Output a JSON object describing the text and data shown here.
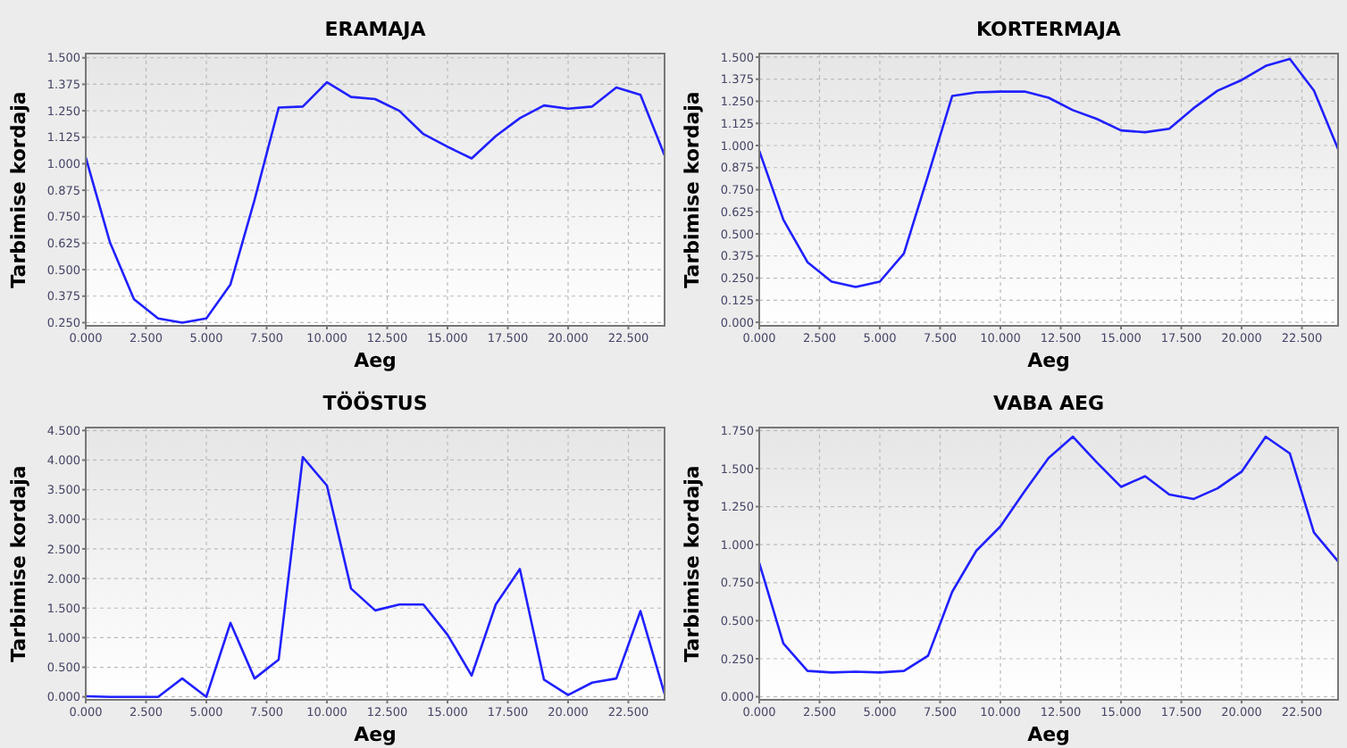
{
  "chart_data": [
    {
      "type": "line",
      "title": "ERAMAJA",
      "xlabel": "Aeg",
      "ylabel": "Tarbimise kordaja",
      "grid": true,
      "xlim": [
        0,
        24
      ],
      "ylim": [
        0.235,
        1.52
      ],
      "xticks": [
        {
          "value": 0,
          "label": "0.000"
        },
        {
          "value": 2.5,
          "label": "2.500"
        },
        {
          "value": 5,
          "label": "5.000"
        },
        {
          "value": 7.5,
          "label": "7.500"
        },
        {
          "value": 10,
          "label": "10.000"
        },
        {
          "value": 12.5,
          "label": "12.500"
        },
        {
          "value": 15,
          "label": "15.000"
        },
        {
          "value": 17.5,
          "label": "17.500"
        },
        {
          "value": 20,
          "label": "20.000"
        },
        {
          "value": 22.5,
          "label": "22.500"
        }
      ],
      "yticks": [
        {
          "value": 0.25,
          "label": "0.250"
        },
        {
          "value": 0.375,
          "label": "0.375"
        },
        {
          "value": 0.5,
          "label": "0.500"
        },
        {
          "value": 0.625,
          "label": "0.625"
        },
        {
          "value": 0.75,
          "label": "0.750"
        },
        {
          "value": 0.875,
          "label": "0.875"
        },
        {
          "value": 1,
          "label": "1.000"
        },
        {
          "value": 1.125,
          "label": "1.125"
        },
        {
          "value": 1.25,
          "label": "1.250"
        },
        {
          "value": 1.375,
          "label": "1.375"
        },
        {
          "value": 1.5,
          "label": "1.500"
        }
      ],
      "x": [
        0,
        1,
        2,
        3,
        4,
        5,
        6,
        7,
        8,
        9,
        10,
        11,
        12,
        13,
        14,
        15,
        16,
        17,
        18,
        19,
        20,
        21,
        22,
        23,
        24
      ],
      "series": [
        {
          "color": "#2020ff",
          "values": [
            1.03,
            0.63,
            0.36,
            0.27,
            0.25,
            0.27,
            0.43,
            0.83,
            1.265,
            1.27,
            1.385,
            1.315,
            1.305,
            1.25,
            1.14,
            1.08,
            1.025,
            1.13,
            1.215,
            1.275,
            1.26,
            1.27,
            1.36,
            1.325,
            1.04
          ]
        }
      ]
    },
    {
      "type": "line",
      "title": "KORTERMAJA",
      "xlabel": "Aeg",
      "ylabel": "Tarbimise kordaja",
      "grid": true,
      "xlim": [
        0,
        24
      ],
      "ylim": [
        -0.02,
        1.52
      ],
      "xticks": [
        {
          "value": 0,
          "label": "0.000"
        },
        {
          "value": 2.5,
          "label": "2.500"
        },
        {
          "value": 5,
          "label": "5.000"
        },
        {
          "value": 7.5,
          "label": "7.500"
        },
        {
          "value": 10,
          "label": "10.000"
        },
        {
          "value": 12.5,
          "label": "12.500"
        },
        {
          "value": 15,
          "label": "15.000"
        },
        {
          "value": 17.5,
          "label": "17.500"
        },
        {
          "value": 20,
          "label": "20.000"
        },
        {
          "value": 22.5,
          "label": "22.500"
        }
      ],
      "yticks": [
        {
          "value": 0,
          "label": "0.000"
        },
        {
          "value": 0.125,
          "label": "0.125"
        },
        {
          "value": 0.25,
          "label": "0.250"
        },
        {
          "value": 0.375,
          "label": "0.375"
        },
        {
          "value": 0.5,
          "label": "0.500"
        },
        {
          "value": 0.625,
          "label": "0.625"
        },
        {
          "value": 0.75,
          "label": "0.750"
        },
        {
          "value": 0.875,
          "label": "0.875"
        },
        {
          "value": 1,
          "label": "1.000"
        },
        {
          "value": 1.125,
          "label": "1.125"
        },
        {
          "value": 1.25,
          "label": "1.250"
        },
        {
          "value": 1.375,
          "label": "1.375"
        },
        {
          "value": 1.5,
          "label": "1.500"
        }
      ],
      "x": [
        0,
        1,
        2,
        3,
        4,
        5,
        6,
        7,
        8,
        9,
        10,
        11,
        12,
        13,
        14,
        15,
        16,
        17,
        18,
        19,
        20,
        21,
        22,
        23,
        24
      ],
      "series": [
        {
          "color": "#2020ff",
          "values": [
            0.97,
            0.58,
            0.34,
            0.23,
            0.2,
            0.23,
            0.39,
            0.83,
            1.28,
            1.3,
            1.305,
            1.305,
            1.27,
            1.2,
            1.15,
            1.085,
            1.075,
            1.095,
            1.21,
            1.31,
            1.37,
            1.45,
            1.49,
            1.31,
            0.98
          ]
        }
      ]
    },
    {
      "type": "line",
      "title": "TÖÖSTUS",
      "xlabel": "Aeg",
      "ylabel": "Tarbimise kordaja",
      "grid": true,
      "xlim": [
        0,
        24
      ],
      "ylim": [
        -0.05,
        4.55
      ],
      "xticks": [
        {
          "value": 0,
          "label": "0.000"
        },
        {
          "value": 2.5,
          "label": "2.500"
        },
        {
          "value": 5,
          "label": "5.000"
        },
        {
          "value": 7.5,
          "label": "7.500"
        },
        {
          "value": 10,
          "label": "10.000"
        },
        {
          "value": 12.5,
          "label": "12.500"
        },
        {
          "value": 15,
          "label": "15.000"
        },
        {
          "value": 17.5,
          "label": "17.500"
        },
        {
          "value": 20,
          "label": "20.000"
        },
        {
          "value": 22.5,
          "label": "22.500"
        }
      ],
      "yticks": [
        {
          "value": 0,
          "label": "0.000"
        },
        {
          "value": 0.5,
          "label": "0.500"
        },
        {
          "value": 1,
          "label": "1.000"
        },
        {
          "value": 1.5,
          "label": "1.500"
        },
        {
          "value": 2,
          "label": "2.000"
        },
        {
          "value": 2.5,
          "label": "2.500"
        },
        {
          "value": 3,
          "label": "3.000"
        },
        {
          "value": 3.5,
          "label": "3.500"
        },
        {
          "value": 4,
          "label": "4.000"
        },
        {
          "value": 4.5,
          "label": "4.500"
        }
      ],
      "x": [
        0,
        1,
        2,
        3,
        4,
        5,
        6,
        7,
        8,
        9,
        10,
        11,
        12,
        13,
        14,
        15,
        16,
        17,
        18,
        19,
        20,
        21,
        22,
        23,
        24
      ],
      "series": [
        {
          "color": "#2020ff",
          "values": [
            0.01,
            0,
            0,
            0,
            0.31,
            0,
            1.25,
            0.31,
            0.63,
            4.05,
            3.57,
            1.83,
            1.46,
            1.56,
            1.56,
            1.05,
            0.36,
            1.56,
            2.16,
            0.29,
            0.03,
            0.24,
            0.31,
            1.45,
            0.05
          ]
        }
      ]
    },
    {
      "type": "line",
      "title": "VABA AEG",
      "xlabel": "Aeg",
      "ylabel": "Tarbimise kordaja",
      "grid": true,
      "xlim": [
        0,
        24
      ],
      "ylim": [
        -0.02,
        1.77
      ],
      "xticks": [
        {
          "value": 0,
          "label": "0.000"
        },
        {
          "value": 2.5,
          "label": "2.500"
        },
        {
          "value": 5,
          "label": "5.000"
        },
        {
          "value": 7.5,
          "label": "7.500"
        },
        {
          "value": 10,
          "label": "10.000"
        },
        {
          "value": 12.5,
          "label": "12.500"
        },
        {
          "value": 15,
          "label": "15.000"
        },
        {
          "value": 17.5,
          "label": "17.500"
        },
        {
          "value": 20,
          "label": "20.000"
        },
        {
          "value": 22.5,
          "label": "22.500"
        }
      ],
      "yticks": [
        {
          "value": 0,
          "label": "0.000"
        },
        {
          "value": 0.25,
          "label": "0.250"
        },
        {
          "value": 0.5,
          "label": "0.500"
        },
        {
          "value": 0.75,
          "label": "0.750"
        },
        {
          "value": 1,
          "label": "1.000"
        },
        {
          "value": 1.25,
          "label": "1.250"
        },
        {
          "value": 1.5,
          "label": "1.500"
        },
        {
          "value": 1.75,
          "label": "1.750"
        }
      ],
      "x": [
        0,
        1,
        2,
        3,
        4,
        5,
        6,
        7,
        8,
        9,
        10,
        11,
        12,
        13,
        14,
        15,
        16,
        17,
        18,
        19,
        20,
        21,
        22,
        23,
        24
      ],
      "series": [
        {
          "color": "#2020ff",
          "values": [
            0.88,
            0.35,
            0.17,
            0.16,
            0.165,
            0.16,
            0.17,
            0.27,
            0.69,
            0.96,
            1.12,
            1.35,
            1.57,
            1.71,
            1.54,
            1.38,
            1.45,
            1.33,
            1.3,
            1.37,
            1.48,
            1.71,
            1.6,
            1.08,
            0.89
          ]
        }
      ]
    }
  ]
}
